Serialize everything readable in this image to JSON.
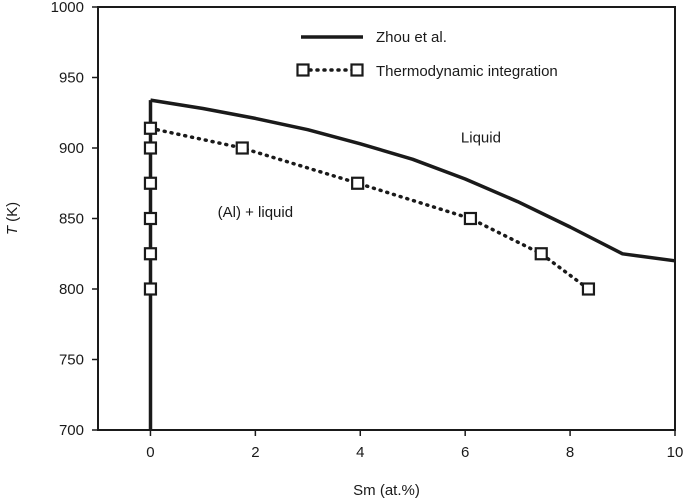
{
  "chart_data": {
    "type": "line",
    "xlabel": "Sm (at.%)",
    "ylabel_italic": "T",
    "ylabel_rest": " (K)",
    "xlim": [
      -1,
      10
    ],
    "ylim": [
      700,
      1000
    ],
    "xticks": [
      0,
      2,
      4,
      6,
      8,
      10
    ],
    "yticks": [
      700,
      750,
      800,
      850,
      900,
      950,
      1000
    ],
    "grid": false,
    "legend_position": "top-right",
    "series": [
      {
        "name": "Zhou et al.",
        "style": "solid",
        "color": "#1a1a1a",
        "x": [
          0,
          1,
          2,
          3,
          4,
          5,
          6,
          7,
          8,
          9,
          10
        ],
        "y": [
          934,
          928,
          921,
          913,
          903,
          892,
          878,
          862,
          844,
          825,
          820
        ]
      },
      {
        "name": "Zhou et al.",
        "style": "solid",
        "color": "#1a1a1a",
        "x": [
          0,
          0
        ],
        "y": [
          700,
          934
        ]
      },
      {
        "name": "Thermodynamic integration",
        "style": "dotted",
        "marker": "square",
        "color": "#1a1a1a",
        "x": [
          0,
          1.75,
          3.95,
          6.1,
          7.45,
          8.35
        ],
        "y": [
          914,
          900,
          875,
          850,
          825,
          800
        ]
      },
      {
        "name": "Thermodynamic integration",
        "style": "none",
        "marker": "square",
        "color": "#1a1a1a",
        "x": [
          0,
          0,
          0,
          0,
          0
        ],
        "y": [
          900,
          875,
          850,
          825,
          800
        ]
      }
    ],
    "annotations": [
      {
        "text": "Liquid",
        "x": 6.3,
        "y": 904
      },
      {
        "text": "(Al) + liquid",
        "x": 2.0,
        "y": 851
      }
    ]
  },
  "legend": {
    "items": [
      {
        "label": "Zhou et al."
      },
      {
        "label": "Thermodynamic integration"
      }
    ]
  }
}
